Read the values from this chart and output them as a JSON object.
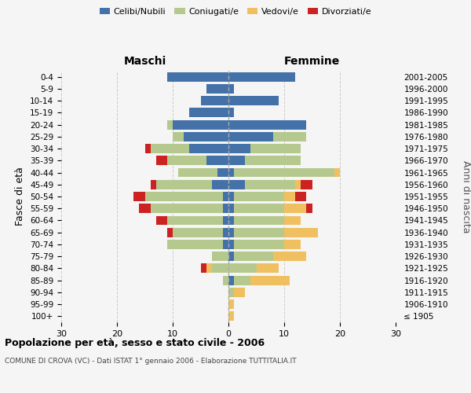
{
  "age_groups": [
    "100+",
    "95-99",
    "90-94",
    "85-89",
    "80-84",
    "75-79",
    "70-74",
    "65-69",
    "60-64",
    "55-59",
    "50-54",
    "45-49",
    "40-44",
    "35-39",
    "30-34",
    "25-29",
    "20-24",
    "15-19",
    "10-14",
    "5-9",
    "0-4"
  ],
  "birth_years": [
    "≤ 1905",
    "1906-1910",
    "1911-1915",
    "1916-1920",
    "1921-1925",
    "1926-1930",
    "1931-1935",
    "1936-1940",
    "1941-1945",
    "1946-1950",
    "1951-1955",
    "1956-1960",
    "1961-1965",
    "1966-1970",
    "1971-1975",
    "1976-1980",
    "1981-1985",
    "1986-1990",
    "1991-1995",
    "1996-2000",
    "2001-2005"
  ],
  "colors": {
    "celibi": "#4472a8",
    "coniugati": "#b5c98e",
    "vedovi": "#f0c060",
    "divorziati": "#cc2222"
  },
  "males": {
    "celibi": [
      0,
      0,
      0,
      0,
      0,
      0,
      1,
      1,
      1,
      1,
      1,
      3,
      2,
      4,
      7,
      8,
      10,
      7,
      5,
      4,
      11
    ],
    "coniugati": [
      0,
      0,
      0,
      1,
      3,
      3,
      10,
      9,
      10,
      13,
      14,
      10,
      7,
      7,
      7,
      2,
      1,
      0,
      0,
      0,
      0
    ],
    "vedovi": [
      0,
      0,
      0,
      0,
      1,
      0,
      0,
      0,
      0,
      0,
      0,
      0,
      0,
      0,
      0,
      0,
      0,
      0,
      0,
      0,
      0
    ],
    "divorziati": [
      0,
      0,
      0,
      0,
      1,
      0,
      0,
      1,
      2,
      2,
      2,
      1,
      0,
      2,
      1,
      0,
      0,
      0,
      0,
      0,
      0
    ]
  },
  "females": {
    "celibi": [
      0,
      0,
      0,
      1,
      0,
      1,
      1,
      1,
      1,
      1,
      1,
      3,
      1,
      3,
      4,
      8,
      14,
      1,
      9,
      1,
      12
    ],
    "coniugati": [
      0,
      0,
      1,
      3,
      5,
      7,
      9,
      9,
      9,
      9,
      9,
      9,
      18,
      10,
      9,
      6,
      0,
      0,
      0,
      0,
      0
    ],
    "vedovi": [
      1,
      1,
      2,
      7,
      4,
      6,
      3,
      6,
      3,
      4,
      2,
      1,
      1,
      0,
      0,
      0,
      0,
      0,
      0,
      0,
      0
    ],
    "divorziati": [
      0,
      0,
      0,
      0,
      0,
      0,
      0,
      0,
      0,
      1,
      2,
      2,
      0,
      0,
      0,
      0,
      0,
      0,
      0,
      0,
      0
    ]
  },
  "title": "Popolazione per età, sesso e stato civile - 2006",
  "subtitle": "COMUNE DI CROVA (VC) - Dati ISTAT 1° gennaio 2006 - Elaborazione TUTTITALIA.IT",
  "xlabel_left": "Maschi",
  "xlabel_right": "Femmine",
  "ylabel_left": "Fasce di età",
  "ylabel_right": "Anni di nascita",
  "xlim": 30,
  "background_color": "#f5f5f5",
  "legend_labels": [
    "Celibi/Nubili",
    "Coniugati/e",
    "Vedovi/e",
    "Divorziati/e"
  ]
}
